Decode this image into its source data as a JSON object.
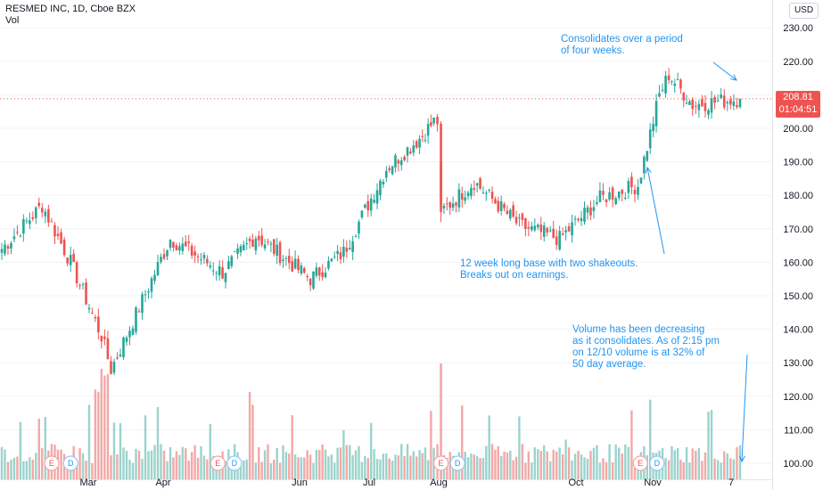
{
  "legend": {
    "symbol_line": "RESMED INC, 1D, Cboe BZX",
    "volume_label": "Vol"
  },
  "currency": "USD",
  "last_price": "208.81",
  "countdown": "01:04:51",
  "annotations": {
    "consolidates": [
      "Consolidates over a period",
      "of four weeks."
    ],
    "base": [
      "12 week long base with two shakeouts.",
      "Breaks out on earnings."
    ],
    "volume": [
      "Volume has been decreasing",
      "as it consolidates. As of 2:15 pm",
      "on 12/10 volume is at 32% of",
      "50 day average."
    ]
  },
  "events": [
    {
      "label": "E",
      "x_date": "Feb 24"
    },
    {
      "label": "D",
      "x_date": "Mar 3"
    },
    {
      "label": "E",
      "x_date": "May 4"
    },
    {
      "label": "D",
      "x_date": "May 11"
    },
    {
      "label": "E",
      "x_date": "Aug 6"
    },
    {
      "label": "D",
      "x_date": "Aug 13"
    },
    {
      "label": "E",
      "x_date": "Oct 29"
    },
    {
      "label": "D",
      "x_date": "Nov 5"
    }
  ],
  "colors": {
    "up": "#26a69a",
    "down": "#ef5350",
    "vol_up": "#9bd3cd",
    "vol_down": "#f3a8a6",
    "annotation": "#2196f3",
    "last_price_line": "#ef5350"
  },
  "chart_data": {
    "type": "candlestick",
    "title": "RESMED INC, 1D, Cboe BZX",
    "currency": "USD",
    "y_axis_ticks": [
      100,
      110,
      120,
      130,
      140,
      150,
      160,
      170,
      180,
      190,
      200,
      210,
      220,
      230
    ],
    "ylim": [
      98,
      234
    ],
    "x_axis_labels": [
      "Mar",
      "Apr",
      "Jun",
      "Jul",
      "Aug",
      "Oct",
      "Nov",
      "7"
    ],
    "last_price": 208.81,
    "grid": true,
    "key_closes": [
      {
        "date": "Feb 3",
        "close": 164
      },
      {
        "date": "Feb 20",
        "close": 177
      },
      {
        "date": "Mar 3",
        "close": 160
      },
      {
        "date": "Mar 16",
        "close": 138
      },
      {
        "date": "Mar 20",
        "close": 128
      },
      {
        "date": "Apr 14",
        "close": 167
      },
      {
        "date": "May 6",
        "close": 157
      },
      {
        "date": "May 20",
        "close": 168
      },
      {
        "date": "Jun 12",
        "close": 155
      },
      {
        "date": "Jun 26",
        "close": 163
      },
      {
        "date": "Jul 14",
        "close": 188
      },
      {
        "date": "Jul 28",
        "close": 197
      },
      {
        "date": "Aug 3",
        "close": 202
      },
      {
        "date": "Aug 6",
        "close": 175
      },
      {
        "date": "Aug 20",
        "close": 184
      },
      {
        "date": "Sep 8",
        "close": 171
      },
      {
        "date": "Sep 25",
        "close": 167
      },
      {
        "date": "Oct 12",
        "close": 179
      },
      {
        "date": "Oct 28",
        "close": 183
      },
      {
        "date": "Nov 6",
        "close": 210
      },
      {
        "date": "Nov 10",
        "close": 216
      },
      {
        "date": "Nov 20",
        "close": 207
      },
      {
        "date": "Dec 10",
        "close": 208.81
      }
    ]
  }
}
